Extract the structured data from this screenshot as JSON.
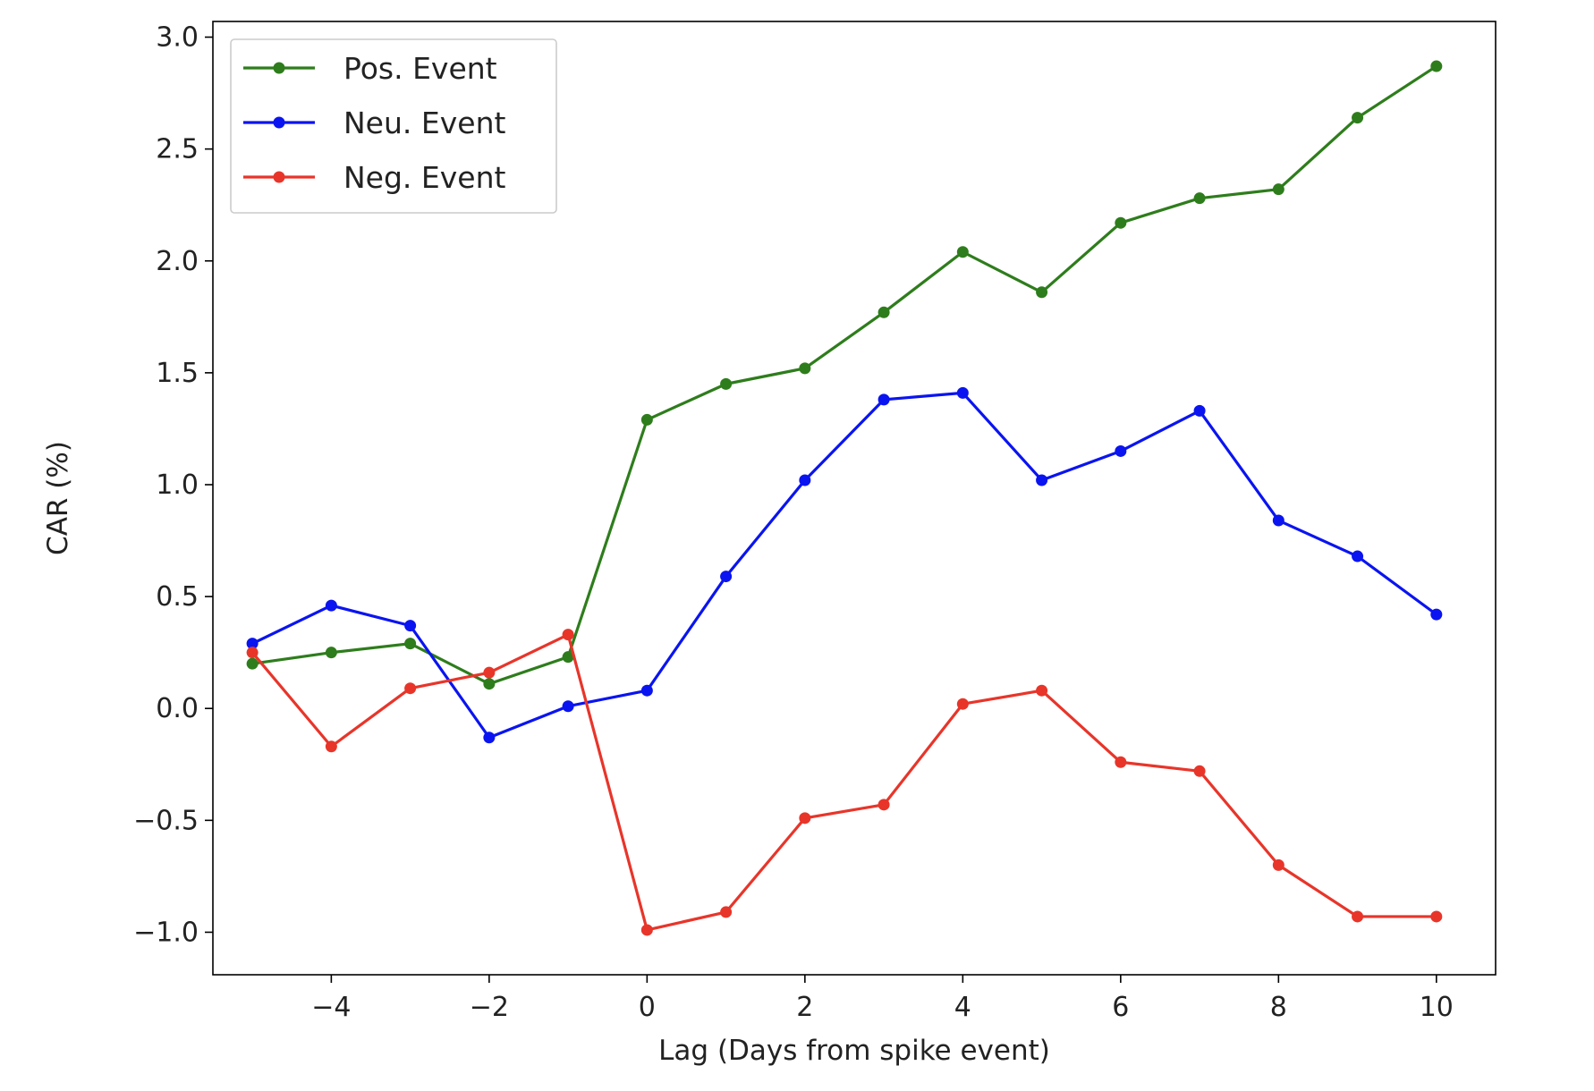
{
  "chart_data": {
    "type": "line",
    "title": "",
    "xlabel": "Lag (Days from spike event)",
    "ylabel": "CAR (%)",
    "xlim": [
      -5.5,
      10.75
    ],
    "ylim": [
      -1.19,
      3.07
    ],
    "x_ticks": [
      -4,
      -2,
      0,
      2,
      4,
      6,
      8,
      10
    ],
    "x_tick_labels": [
      "−4",
      "−2",
      "0",
      "2",
      "4",
      "6",
      "8",
      "10"
    ],
    "y_ticks": [
      -1.0,
      -0.5,
      0.0,
      0.5,
      1.0,
      1.5,
      2.0,
      2.5,
      3.0
    ],
    "y_tick_labels": [
      "−1.0",
      "−0.5",
      "0.0",
      "0.5",
      "1.0",
      "1.5",
      "2.0",
      "2.5",
      "3.0"
    ],
    "grid": false,
    "legend_position": "upper-left",
    "x": [
      -5,
      -4,
      -3,
      -2,
      -1,
      0,
      1,
      2,
      3,
      4,
      5,
      6,
      7,
      8,
      9,
      10
    ],
    "series": [
      {
        "name": "Pos. Event",
        "color": "#2e7d1c",
        "values": [
          0.2,
          0.25,
          0.29,
          0.11,
          0.23,
          1.29,
          1.45,
          1.52,
          1.77,
          2.04,
          1.86,
          2.17,
          2.28,
          2.32,
          2.64,
          2.87
        ]
      },
      {
        "name": "Neu. Event",
        "color": "#0a14f0",
        "values": [
          0.29,
          0.46,
          0.37,
          -0.13,
          0.01,
          0.08,
          0.59,
          1.02,
          1.38,
          1.41,
          1.02,
          1.15,
          1.33,
          0.84,
          0.68,
          0.42
        ]
      },
      {
        "name": "Neg. Event",
        "color": "#e8352a",
        "values": [
          0.25,
          -0.17,
          0.09,
          0.16,
          0.33,
          -0.99,
          -0.91,
          -0.49,
          -0.43,
          0.02,
          0.08,
          -0.24,
          -0.28,
          -0.7,
          -0.93,
          -0.93
        ]
      }
    ]
  }
}
